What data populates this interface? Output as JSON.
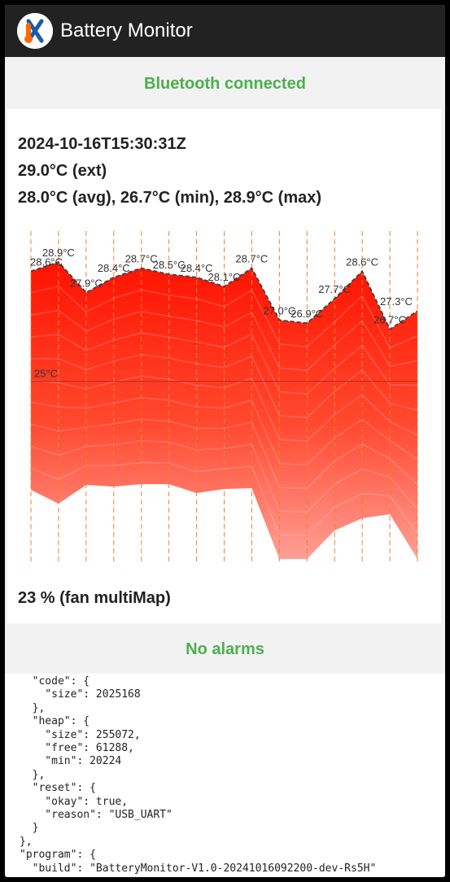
{
  "app": {
    "title": "Battery Monitor",
    "icon": "thermometer-fan-logo-icon"
  },
  "status": {
    "bluetooth": "Bluetooth connected",
    "alarms": "No alarms"
  },
  "readings": {
    "timestamp": "2024-10-16T15:30:31Z",
    "ext": "29.0°C (ext)",
    "summary": "28.0°C (avg), 26.7°C (min), 28.9°C (max)",
    "fan": "23 % (fan multiMap)"
  },
  "chart_data": {
    "type": "area",
    "threshold": {
      "value": 25,
      "label": "25°C"
    },
    "y_range": [
      19,
      30.5
    ],
    "values": [
      28.6,
      28.9,
      27.9,
      28.4,
      28.7,
      28.5,
      28.4,
      28.1,
      28.7,
      27.0,
      26.9,
      27.7,
      28.6,
      26.7,
      27.3
    ],
    "labels": [
      "28.6°C",
      "28.9°C",
      "27.9°C",
      "28.4°C",
      "28.7°C",
      "28.5°C",
      "28.4°C",
      "28.1°C",
      "28.7°C",
      "27.0°C",
      "26.9°C",
      "27.7°C",
      "28.6°C",
      "26.7°C",
      "27.3°C"
    ],
    "colors": {
      "top": "#ff1a00",
      "bottom": "#ffb0a8",
      "threshold": "#c03020",
      "dashed": "#f08030",
      "outline": "#444444"
    }
  },
  "json_text": "  \"code\": {\n    \"size\": 2025168\n  },\n  \"heap\": {\n    \"size\": 255072,\n    \"free\": 61288,\n    \"min\": 20224\n  },\n  \"reset\": {\n    \"okay\": true,\n    \"reason\": \"USB_UART\"\n  }\n},\n\"program\": {\n  \"build\": \"BatteryMonitor-V1.0-20241016092200-dev-Rs5H\""
}
